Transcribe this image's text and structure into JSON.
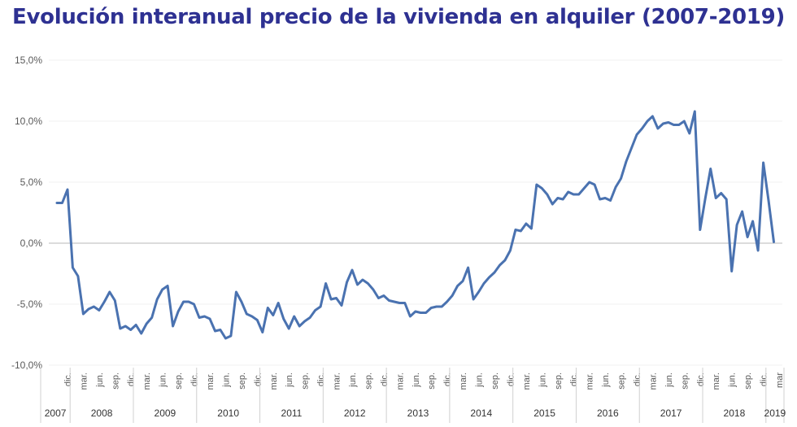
{
  "chart_data": {
    "type": "line",
    "title": "Evolución interanual precio de la vivienda en alquiler (2007-2019)",
    "xlabel": "",
    "ylabel": "",
    "ylim": [
      -10,
      15
    ],
    "y_ticks": [
      "-10,0%",
      "-5,0%",
      "0,0%",
      "5,0%",
      "10,0%",
      "15,0%"
    ],
    "y_tick_values": [
      -10,
      -5,
      0,
      5,
      10,
      15
    ],
    "grid": "horizontal",
    "legend": "none",
    "line_color": "#4a72b0",
    "x_start": "2007-10",
    "x_end": "2019-03",
    "month_ticks": [
      {
        "date": "2007-12",
        "label": "dic."
      },
      {
        "date": "2008-03",
        "label": "mar."
      },
      {
        "date": "2008-06",
        "label": "jun."
      },
      {
        "date": "2008-09",
        "label": "sep."
      },
      {
        "date": "2008-12",
        "label": "dic."
      },
      {
        "date": "2009-03",
        "label": "mar."
      },
      {
        "date": "2009-06",
        "label": "jun."
      },
      {
        "date": "2009-09",
        "label": "sep."
      },
      {
        "date": "2009-12",
        "label": "dic."
      },
      {
        "date": "2010-03",
        "label": "mar."
      },
      {
        "date": "2010-06",
        "label": "jun."
      },
      {
        "date": "2010-09",
        "label": "sep."
      },
      {
        "date": "2010-12",
        "label": "dic."
      },
      {
        "date": "2011-03",
        "label": "mar."
      },
      {
        "date": "2011-06",
        "label": "jun."
      },
      {
        "date": "2011-09",
        "label": "sep."
      },
      {
        "date": "2011-12",
        "label": "dic."
      },
      {
        "date": "2012-03",
        "label": "mar."
      },
      {
        "date": "2012-06",
        "label": "jun."
      },
      {
        "date": "2012-09",
        "label": "sep."
      },
      {
        "date": "2012-12",
        "label": "dic."
      },
      {
        "date": "2013-03",
        "label": "mar."
      },
      {
        "date": "2013-06",
        "label": "jun."
      },
      {
        "date": "2013-09",
        "label": "sep."
      },
      {
        "date": "2013-12",
        "label": "dic."
      },
      {
        "date": "2014-03",
        "label": "mar."
      },
      {
        "date": "2014-06",
        "label": "jun."
      },
      {
        "date": "2014-09",
        "label": "sep."
      },
      {
        "date": "2014-12",
        "label": "dic."
      },
      {
        "date": "2015-03",
        "label": "mar."
      },
      {
        "date": "2015-06",
        "label": "jun."
      },
      {
        "date": "2015-09",
        "label": "sep."
      },
      {
        "date": "2015-12",
        "label": "dic."
      },
      {
        "date": "2016-03",
        "label": "mar."
      },
      {
        "date": "2016-06",
        "label": "jun."
      },
      {
        "date": "2016-09",
        "label": "sep."
      },
      {
        "date": "2016-12",
        "label": "dic."
      },
      {
        "date": "2017-03",
        "label": "mar."
      },
      {
        "date": "2017-06",
        "label": "jun."
      },
      {
        "date": "2017-09",
        "label": "sep."
      },
      {
        "date": "2017-12",
        "label": "dic."
      },
      {
        "date": "2018-03",
        "label": "mar."
      },
      {
        "date": "2018-06",
        "label": "jun."
      },
      {
        "date": "2018-09",
        "label": "sep."
      },
      {
        "date": "2018-12",
        "label": "dic."
      },
      {
        "date": "2019-03",
        "label": "mar"
      }
    ],
    "years": [
      "2007",
      "2008",
      "2009",
      "2010",
      "2011",
      "2012",
      "2013",
      "2014",
      "2015",
      "2016",
      "2017",
      "2018",
      "2019"
    ],
    "series": [
      {
        "values": [
          {
            "x": "2007-10",
            "y": 3.3
          },
          {
            "x": "2007-11",
            "y": 3.3
          },
          {
            "x": "2007-12",
            "y": 4.4
          },
          {
            "x": "2008-01",
            "y": -2.0
          },
          {
            "x": "2008-02",
            "y": -2.7
          },
          {
            "x": "2008-03",
            "y": -5.8
          },
          {
            "x": "2008-04",
            "y": -5.4
          },
          {
            "x": "2008-05",
            "y": -5.2
          },
          {
            "x": "2008-06",
            "y": -5.5
          },
          {
            "x": "2008-07",
            "y": -4.8
          },
          {
            "x": "2008-08",
            "y": -4.0
          },
          {
            "x": "2008-09",
            "y": -4.7
          },
          {
            "x": "2008-10",
            "y": -7.0
          },
          {
            "x": "2008-11",
            "y": -6.8
          },
          {
            "x": "2008-12",
            "y": -7.1
          },
          {
            "x": "2009-01",
            "y": -6.7
          },
          {
            "x": "2009-02",
            "y": -7.4
          },
          {
            "x": "2009-03",
            "y": -6.6
          },
          {
            "x": "2009-04",
            "y": -6.1
          },
          {
            "x": "2009-05",
            "y": -4.6
          },
          {
            "x": "2009-06",
            "y": -3.8
          },
          {
            "x": "2009-07",
            "y": -3.5
          },
          {
            "x": "2009-08",
            "y": -6.8
          },
          {
            "x": "2009-09",
            "y": -5.6
          },
          {
            "x": "2009-10",
            "y": -4.8
          },
          {
            "x": "2009-11",
            "y": -4.8
          },
          {
            "x": "2009-12",
            "y": -5.0
          },
          {
            "x": "2010-01",
            "y": -6.1
          },
          {
            "x": "2010-02",
            "y": -6.0
          },
          {
            "x": "2010-03",
            "y": -6.2
          },
          {
            "x": "2010-04",
            "y": -7.2
          },
          {
            "x": "2010-05",
            "y": -7.1
          },
          {
            "x": "2010-06",
            "y": -7.8
          },
          {
            "x": "2010-07",
            "y": -7.6
          },
          {
            "x": "2010-08",
            "y": -4.0
          },
          {
            "x": "2010-09",
            "y": -4.8
          },
          {
            "x": "2010-10",
            "y": -5.8
          },
          {
            "x": "2010-11",
            "y": -6.0
          },
          {
            "x": "2010-12",
            "y": -6.3
          },
          {
            "x": "2011-01",
            "y": -7.3
          },
          {
            "x": "2011-02",
            "y": -5.3
          },
          {
            "x": "2011-03",
            "y": -5.9
          },
          {
            "x": "2011-04",
            "y": -4.9
          },
          {
            "x": "2011-05",
            "y": -6.2
          },
          {
            "x": "2011-06",
            "y": -7.0
          },
          {
            "x": "2011-07",
            "y": -6.0
          },
          {
            "x": "2011-08",
            "y": -6.8
          },
          {
            "x": "2011-09",
            "y": -6.4
          },
          {
            "x": "2011-10",
            "y": -6.1
          },
          {
            "x": "2011-11",
            "y": -5.5
          },
          {
            "x": "2011-12",
            "y": -5.2
          },
          {
            "x": "2012-01",
            "y": -3.3
          },
          {
            "x": "2012-02",
            "y": -4.6
          },
          {
            "x": "2012-03",
            "y": -4.5
          },
          {
            "x": "2012-04",
            "y": -5.1
          },
          {
            "x": "2012-05",
            "y": -3.2
          },
          {
            "x": "2012-06",
            "y": -2.2
          },
          {
            "x": "2012-07",
            "y": -3.4
          },
          {
            "x": "2012-08",
            "y": -3.0
          },
          {
            "x": "2012-09",
            "y": -3.3
          },
          {
            "x": "2012-10",
            "y": -3.8
          },
          {
            "x": "2012-11",
            "y": -4.5
          },
          {
            "x": "2012-12",
            "y": -4.3
          },
          {
            "x": "2013-01",
            "y": -4.7
          },
          {
            "x": "2013-02",
            "y": -4.8
          },
          {
            "x": "2013-03",
            "y": -4.9
          },
          {
            "x": "2013-04",
            "y": -4.9
          },
          {
            "x": "2013-05",
            "y": -6.0
          },
          {
            "x": "2013-06",
            "y": -5.6
          },
          {
            "x": "2013-07",
            "y": -5.7
          },
          {
            "x": "2013-08",
            "y": -5.7
          },
          {
            "x": "2013-09",
            "y": -5.3
          },
          {
            "x": "2013-10",
            "y": -5.2
          },
          {
            "x": "2013-11",
            "y": -5.2
          },
          {
            "x": "2013-12",
            "y": -4.8
          },
          {
            "x": "2014-01",
            "y": -4.3
          },
          {
            "x": "2014-02",
            "y": -3.5
          },
          {
            "x": "2014-03",
            "y": -3.1
          },
          {
            "x": "2014-04",
            "y": -2.0
          },
          {
            "x": "2014-05",
            "y": -4.6
          },
          {
            "x": "2014-06",
            "y": -4.0
          },
          {
            "x": "2014-07",
            "y": -3.3
          },
          {
            "x": "2014-08",
            "y": -2.8
          },
          {
            "x": "2014-09",
            "y": -2.4
          },
          {
            "x": "2014-10",
            "y": -1.8
          },
          {
            "x": "2014-11",
            "y": -1.4
          },
          {
            "x": "2014-12",
            "y": -0.6
          },
          {
            "x": "2015-01",
            "y": 1.1
          },
          {
            "x": "2015-02",
            "y": 1.0
          },
          {
            "x": "2015-03",
            "y": 1.6
          },
          {
            "x": "2015-04",
            "y": 1.2
          },
          {
            "x": "2015-05",
            "y": 4.8
          },
          {
            "x": "2015-06",
            "y": 4.5
          },
          {
            "x": "2015-07",
            "y": 4.0
          },
          {
            "x": "2015-08",
            "y": 3.2
          },
          {
            "x": "2015-09",
            "y": 3.7
          },
          {
            "x": "2015-10",
            "y": 3.6
          },
          {
            "x": "2015-11",
            "y": 4.2
          },
          {
            "x": "2015-12",
            "y": 4.0
          },
          {
            "x": "2016-01",
            "y": 4.0
          },
          {
            "x": "2016-02",
            "y": 4.5
          },
          {
            "x": "2016-03",
            "y": 5.0
          },
          {
            "x": "2016-04",
            "y": 4.8
          },
          {
            "x": "2016-05",
            "y": 3.6
          },
          {
            "x": "2016-06",
            "y": 3.7
          },
          {
            "x": "2016-07",
            "y": 3.5
          },
          {
            "x": "2016-08",
            "y": 4.6
          },
          {
            "x": "2016-09",
            "y": 5.3
          },
          {
            "x": "2016-10",
            "y": 6.7
          },
          {
            "x": "2016-11",
            "y": 7.8
          },
          {
            "x": "2016-12",
            "y": 8.9
          },
          {
            "x": "2017-01",
            "y": 9.4
          },
          {
            "x": "2017-02",
            "y": 10.0
          },
          {
            "x": "2017-03",
            "y": 10.4
          },
          {
            "x": "2017-04",
            "y": 9.4
          },
          {
            "x": "2017-05",
            "y": 9.8
          },
          {
            "x": "2017-06",
            "y": 9.9
          },
          {
            "x": "2017-07",
            "y": 9.7
          },
          {
            "x": "2017-08",
            "y": 9.7
          },
          {
            "x": "2017-09",
            "y": 10.0
          },
          {
            "x": "2017-10",
            "y": 9.0
          },
          {
            "x": "2017-11",
            "y": 10.8
          },
          {
            "x": "2017-12",
            "y": 1.1
          },
          {
            "x": "2018-01",
            "y": 3.7
          },
          {
            "x": "2018-02",
            "y": 6.1
          },
          {
            "x": "2018-03",
            "y": 3.7
          },
          {
            "x": "2018-04",
            "y": 4.1
          },
          {
            "x": "2018-05",
            "y": 3.6
          },
          {
            "x": "2018-06",
            "y": -2.3
          },
          {
            "x": "2018-07",
            "y": 1.5
          },
          {
            "x": "2018-08",
            "y": 2.6
          },
          {
            "x": "2018-09",
            "y": 0.5
          },
          {
            "x": "2018-10",
            "y": 1.8
          },
          {
            "x": "2018-11",
            "y": -0.6
          },
          {
            "x": "2018-12",
            "y": 6.6
          },
          {
            "x": "2019-01",
            "y": 3.5
          },
          {
            "x": "2019-02",
            "y": 0.1
          }
        ]
      }
    ]
  }
}
